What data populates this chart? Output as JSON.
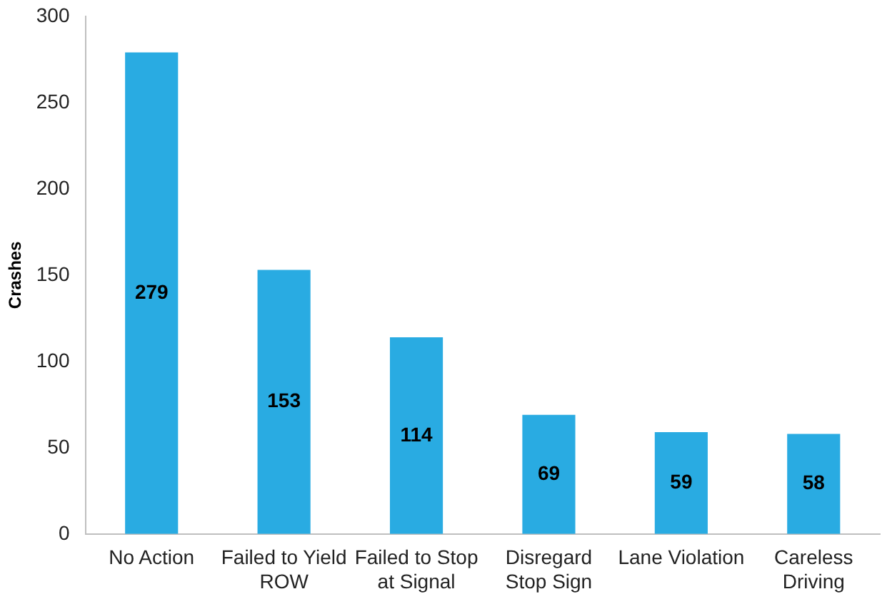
{
  "chart_data": {
    "type": "bar",
    "ylabel": "Crashes",
    "categories": [
      "No Action",
      "Failed to Yield ROW",
      "Failed to Stop at Signal",
      "Disregard Stop Sign",
      "Lane Violation",
      "Careless Driving"
    ],
    "values": [
      279,
      153,
      114,
      69,
      59,
      58
    ],
    "color": "#29abe2",
    "ylim": [
      0,
      300
    ],
    "yticks": [
      0,
      50,
      100,
      150,
      200,
      250,
      300
    ],
    "grid": false,
    "legend": false,
    "data_labels": true
  }
}
